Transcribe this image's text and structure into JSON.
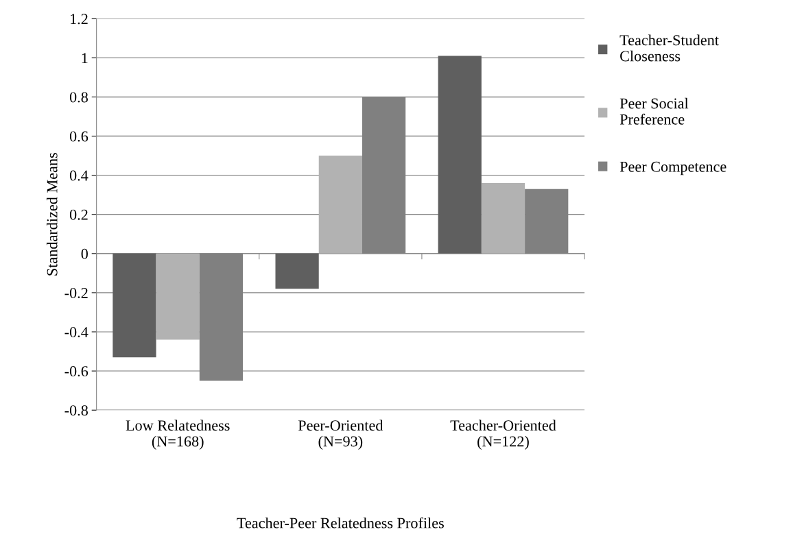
{
  "chart_data": {
    "type": "bar",
    "xlabel": "Teacher-Peer Relatedness Profiles",
    "ylabel": "Standardized Means",
    "categories": [
      "Low Relatedness\n(N=168)",
      "Peer-Oriented\n(N=93)",
      "Teacher-Oriented\n(N=122)"
    ],
    "series": [
      {
        "name": "Teacher-Student\nCloseness",
        "color": "#5f5f5f",
        "values": [
          -0.53,
          -0.18,
          1.01
        ]
      },
      {
        "name": "Peer Social\nPreference",
        "color": "#b2b2b2",
        "values": [
          -0.44,
          0.5,
          0.36
        ]
      },
      {
        "name": "Peer Competence",
        "color": "#808080",
        "values": [
          -0.65,
          0.8,
          0.33
        ]
      }
    ],
    "ylim": [
      -0.8,
      1.2
    ],
    "yticks": [
      -0.8,
      -0.6,
      -0.4,
      -0.2,
      0,
      0.2,
      0.4,
      0.6,
      0.8,
      1,
      1.2
    ],
    "grid": "y",
    "legend": "right"
  }
}
